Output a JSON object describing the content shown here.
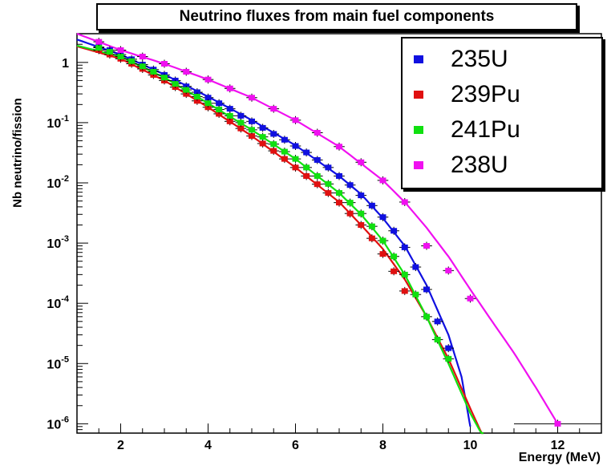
{
  "chart_data": {
    "type": "scatter",
    "title": "Neutrino fluxes from main fuel components",
    "xlabel": "Energy (MeV)",
    "ylabel": "Nb neutrino/fission",
    "xlim": [
      1,
      13
    ],
    "ylim": [
      7e-07,
      3
    ],
    "yscale": "log",
    "x_ticks": [
      2,
      4,
      6,
      8,
      10,
      12
    ],
    "y_ticks": [
      {
        "value": 1e-06,
        "base": "10",
        "exp": "-6"
      },
      {
        "value": 1e-05,
        "base": "10",
        "exp": "-5"
      },
      {
        "value": 0.0001,
        "base": "10",
        "exp": "-4"
      },
      {
        "value": 0.001,
        "base": "10",
        "exp": "-3"
      },
      {
        "value": 0.01,
        "base": "10",
        "exp": "-2"
      },
      {
        "value": 0.1,
        "base": "10",
        "exp": "-1"
      },
      {
        "value": 1,
        "base": "1",
        "exp": ""
      }
    ],
    "legend_position": "top-right",
    "series": [
      {
        "name": "235U",
        "color": "#1010e0",
        "points": [
          [
            1.5,
            1.8
          ],
          [
            1.75,
            1.6
          ],
          [
            2.0,
            1.35
          ],
          [
            2.25,
            1.13
          ],
          [
            2.5,
            0.92
          ],
          [
            2.75,
            0.76
          ],
          [
            3.0,
            0.62
          ],
          [
            3.25,
            0.5
          ],
          [
            3.5,
            0.4
          ],
          [
            3.75,
            0.32
          ],
          [
            4.0,
            0.26
          ],
          [
            4.25,
            0.21
          ],
          [
            4.5,
            0.17
          ],
          [
            4.75,
            0.13
          ],
          [
            5.0,
            0.105
          ],
          [
            5.25,
            0.082
          ],
          [
            5.5,
            0.065
          ],
          [
            5.75,
            0.052
          ],
          [
            6.0,
            0.041
          ],
          [
            6.25,
            0.032
          ],
          [
            6.5,
            0.024
          ],
          [
            6.75,
            0.018
          ],
          [
            7.0,
            0.013
          ],
          [
            7.25,
            0.0092
          ],
          [
            7.5,
            0.0062
          ],
          [
            7.75,
            0.0042
          ],
          [
            8.0,
            0.0027
          ],
          [
            8.25,
            0.0016
          ],
          [
            8.5,
            0.00085
          ],
          [
            8.75,
            0.0004
          ],
          [
            9.0,
            0.00017
          ],
          [
            9.25,
            5e-05
          ],
          [
            9.5,
            1.8e-05
          ]
        ],
        "fit": [
          [
            1.0,
            2.4
          ],
          [
            2.0,
            1.35
          ],
          [
            3.0,
            0.63
          ],
          [
            4.0,
            0.27
          ],
          [
            5.0,
            0.11
          ],
          [
            6.0,
            0.042
          ],
          [
            7.0,
            0.013
          ],
          [
            7.5,
            0.0065
          ],
          [
            8.0,
            0.0026
          ],
          [
            8.5,
            0.0009
          ],
          [
            9.0,
            0.0002
          ],
          [
            9.5,
            3e-05
          ],
          [
            9.8,
            6e-06
          ],
          [
            10.0,
            9e-07
          ]
        ]
      },
      {
        "name": "239Pu",
        "color": "#e01010",
        "points": [
          [
            1.5,
            1.6
          ],
          [
            1.75,
            1.35
          ],
          [
            2.0,
            1.15
          ],
          [
            2.25,
            0.95
          ],
          [
            2.5,
            0.78
          ],
          [
            2.75,
            0.62
          ],
          [
            3.0,
            0.5
          ],
          [
            3.25,
            0.39
          ],
          [
            3.5,
            0.3
          ],
          [
            3.75,
            0.23
          ],
          [
            4.0,
            0.18
          ],
          [
            4.25,
            0.14
          ],
          [
            4.5,
            0.105
          ],
          [
            4.75,
            0.08
          ],
          [
            5.0,
            0.06
          ],
          [
            5.25,
            0.045
          ],
          [
            5.5,
            0.034
          ],
          [
            5.75,
            0.025
          ],
          [
            6.0,
            0.018
          ],
          [
            6.25,
            0.013
          ],
          [
            6.5,
            0.0095
          ],
          [
            6.75,
            0.0068
          ],
          [
            7.0,
            0.0047
          ],
          [
            7.25,
            0.0031
          ],
          [
            7.5,
            0.002
          ],
          [
            7.75,
            0.0012
          ],
          [
            8.0,
            0.00066
          ],
          [
            8.25,
            0.00034
          ],
          [
            8.5,
            0.00016
          ]
        ],
        "fit": [
          [
            1.0,
            1.85
          ],
          [
            2.0,
            1.15
          ],
          [
            3.0,
            0.5
          ],
          [
            4.0,
            0.18
          ],
          [
            5.0,
            0.06
          ],
          [
            6.0,
            0.018
          ],
          [
            7.0,
            0.0048
          ],
          [
            7.5,
            0.002
          ],
          [
            8.0,
            0.0008
          ],
          [
            8.5,
            0.00025
          ],
          [
            9.0,
            6e-05
          ],
          [
            9.5,
            1.2e-05
          ],
          [
            10.0,
            1.8e-06
          ],
          [
            10.3,
            6e-07
          ]
        ]
      },
      {
        "name": "241Pu",
        "color": "#10e010",
        "points": [
          [
            1.5,
            1.75
          ],
          [
            1.75,
            1.5
          ],
          [
            2.0,
            1.25
          ],
          [
            2.25,
            1.05
          ],
          [
            2.5,
            0.86
          ],
          [
            2.75,
            0.7
          ],
          [
            3.0,
            0.56
          ],
          [
            3.25,
            0.44
          ],
          [
            3.5,
            0.35
          ],
          [
            3.75,
            0.27
          ],
          [
            4.0,
            0.21
          ],
          [
            4.25,
            0.165
          ],
          [
            4.5,
            0.13
          ],
          [
            4.75,
            0.1
          ],
          [
            5.0,
            0.076
          ],
          [
            5.25,
            0.058
          ],
          [
            5.5,
            0.044
          ],
          [
            5.75,
            0.033
          ],
          [
            6.0,
            0.025
          ],
          [
            6.25,
            0.018
          ],
          [
            6.5,
            0.013
          ],
          [
            6.75,
            0.0096
          ],
          [
            7.0,
            0.0068
          ],
          [
            7.25,
            0.0047
          ],
          [
            7.5,
            0.0031
          ],
          [
            7.75,
            0.0019
          ],
          [
            8.0,
            0.0011
          ],
          [
            8.25,
            0.0006
          ],
          [
            8.5,
            0.0003
          ],
          [
            8.75,
            0.00014
          ],
          [
            9.0,
            6e-05
          ],
          [
            9.25,
            2.5e-05
          ],
          [
            9.5,
            1.2e-05
          ]
        ],
        "fit": [
          [
            1.0,
            1.9
          ],
          [
            2.0,
            1.25
          ],
          [
            3.0,
            0.56
          ],
          [
            4.0,
            0.21
          ],
          [
            5.0,
            0.076
          ],
          [
            6.0,
            0.025
          ],
          [
            7.0,
            0.0068
          ],
          [
            7.5,
            0.003
          ],
          [
            8.0,
            0.0011
          ],
          [
            8.5,
            0.0003
          ],
          [
            9.0,
            6e-05
          ],
          [
            9.5,
            1e-05
          ],
          [
            10.0,
            1.5e-06
          ],
          [
            10.3,
            6e-07
          ]
        ]
      },
      {
        "name": "238U",
        "color": "#f010f0",
        "points": [
          [
            1.5,
            2.2
          ],
          [
            2.0,
            1.6
          ],
          [
            2.5,
            1.25
          ],
          [
            3.0,
            0.95
          ],
          [
            3.5,
            0.7
          ],
          [
            4.0,
            0.52
          ],
          [
            4.5,
            0.37
          ],
          [
            5.0,
            0.26
          ],
          [
            5.5,
            0.17
          ],
          [
            6.0,
            0.11
          ],
          [
            6.5,
            0.068
          ],
          [
            7.0,
            0.04
          ],
          [
            7.5,
            0.022
          ],
          [
            8.0,
            0.011
          ],
          [
            8.5,
            0.0048
          ],
          [
            9.0,
            0.0009
          ],
          [
            9.5,
            0.00035
          ],
          [
            10.0,
            0.00012
          ],
          [
            12.0,
            1e-06
          ]
        ],
        "fit": [
          [
            1.0,
            3.0
          ],
          [
            2.0,
            1.6
          ],
          [
            3.0,
            0.95
          ],
          [
            4.0,
            0.52
          ],
          [
            5.0,
            0.26
          ],
          [
            6.0,
            0.11
          ],
          [
            7.0,
            0.04
          ],
          [
            8.0,
            0.011
          ],
          [
            8.5,
            0.0048
          ],
          [
            9.0,
            0.0018
          ],
          [
            9.5,
            0.0006
          ],
          [
            10.0,
            0.00017
          ],
          [
            10.5,
            5e-05
          ],
          [
            11.0,
            1.5e-05
          ],
          [
            11.5,
            4e-06
          ],
          [
            12.0,
            1e-06
          ]
        ]
      }
    ]
  }
}
